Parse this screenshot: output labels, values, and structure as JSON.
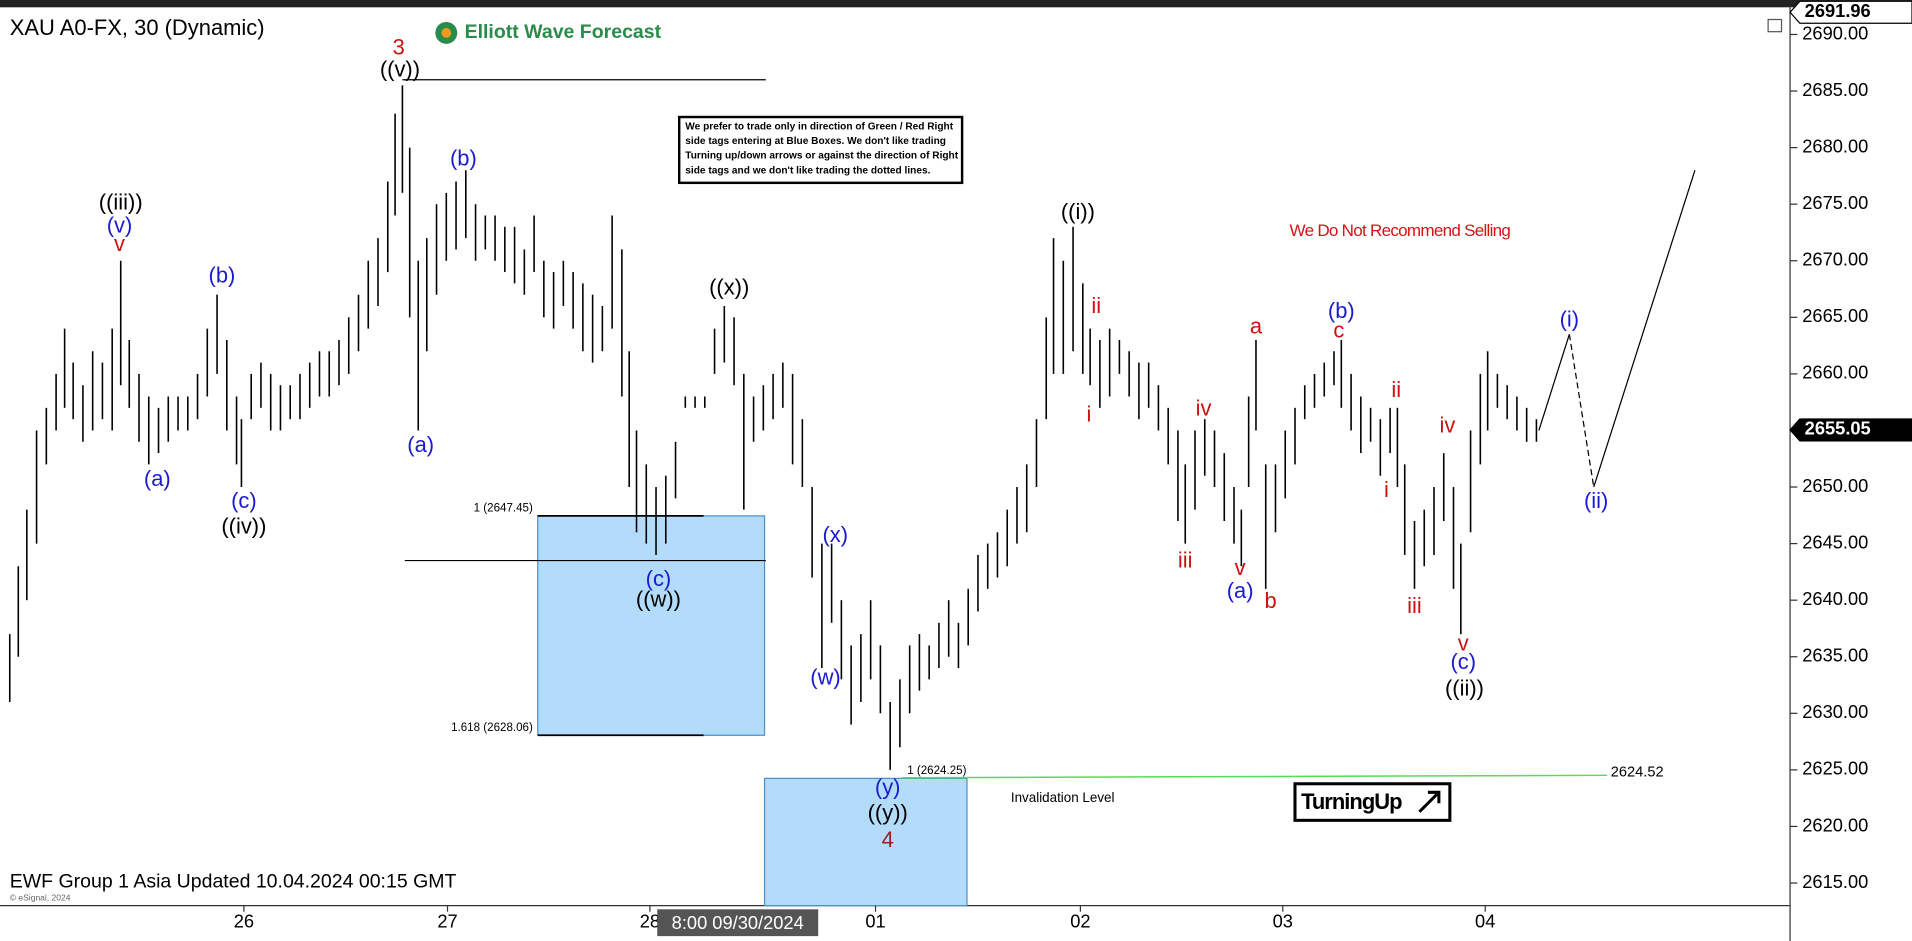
{
  "chart_data": {
    "type": "ohlc",
    "title": "XAU A0-FX, 30 (Dynamic)",
    "brand": "Elliott Wave Forecast",
    "note": [
      "We prefer to trade only in direction of Green / Red Right",
      "side tags entering at Blue Boxes. We don't like trading",
      "Turning up/down arrows or against the direction of Right",
      "side tags and we don't like trading the dotted lines."
    ],
    "recommendation": "We Do Not Recommend Selling",
    "badge": "TurningUp",
    "footer": "EWF Group 1 Asia Updated 10.04.2024 00:15 GMT",
    "copyright": "© eSignal, 2024",
    "cursor_label": "8:00 09/30/2024",
    "ylim": [
      2613,
      2692.4
    ],
    "yticks": [
      {
        "value": 2615,
        "label": "2615.00"
      },
      {
        "value": 2620,
        "label": "2620.00"
      },
      {
        "value": 2625,
        "label": "2625.00"
      },
      {
        "value": 2630,
        "label": "2630.00"
      },
      {
        "value": 2635,
        "label": "2635.00"
      },
      {
        "value": 2640,
        "label": "2640.00"
      },
      {
        "value": 2645,
        "label": "2645.00"
      },
      {
        "value": 2650,
        "label": "2650.00"
      },
      {
        "value": 2655,
        "label": "2655.00"
      },
      {
        "value": 2660,
        "label": "2660.00"
      },
      {
        "value": 2665,
        "label": "2665.00"
      },
      {
        "value": 2670,
        "label": "2670.00"
      },
      {
        "value": 2675,
        "label": "2675.00"
      },
      {
        "value": 2680,
        "label": "2680.00"
      },
      {
        "value": 2685,
        "label": "2685.00"
      },
      {
        "value": 2690,
        "label": "2690.00"
      }
    ],
    "xlim": [
      0,
      1468
    ],
    "xticks": [
      {
        "value": 200,
        "label": "26"
      },
      {
        "value": 367,
        "label": "27"
      },
      {
        "value": 533,
        "label": "28"
      },
      {
        "value": 718,
        "label": "01"
      },
      {
        "value": 886,
        "label": "02"
      },
      {
        "value": 1052,
        "label": "03"
      },
      {
        "value": 1218,
        "label": "04"
      }
    ],
    "price_tags": [
      2691.96,
      2655.05
    ],
    "bars": {
      "x": [
        8,
        15,
        22,
        30,
        38,
        46,
        53,
        60,
        68,
        76,
        84,
        92,
        99,
        106,
        114,
        122,
        130,
        138,
        146,
        154,
        162,
        170,
        178,
        186,
        194,
        198,
        206,
        214,
        222,
        230,
        238,
        246,
        254,
        262,
        270,
        278,
        286,
        294,
        302,
        310,
        318,
        324,
        330,
        336,
        343,
        350,
        358,
        366,
        374,
        382,
        390,
        398,
        406,
        414,
        422,
        430,
        438,
        446,
        454,
        462,
        470,
        478,
        486,
        494,
        502,
        510,
        516,
        522,
        530,
        538,
        546,
        554,
        562,
        570,
        578,
        586,
        594,
        602,
        610,
        618,
        626,
        634,
        642,
        650,
        658,
        666,
        674,
        682,
        690,
        698,
        706,
        714,
        722,
        730,
        738,
        746,
        754,
        762,
        770,
        778,
        786,
        794,
        802,
        810,
        818,
        826,
        834,
        842,
        850,
        858,
        864,
        872,
        880,
        888,
        894,
        902,
        910,
        918,
        926,
        934,
        942,
        950,
        958,
        966,
        972,
        980,
        988,
        996,
        1004,
        1012,
        1018,
        1024,
        1030,
        1038,
        1046,
        1054,
        1062,
        1070,
        1078,
        1086,
        1094,
        1100,
        1108,
        1116,
        1124,
        1132,
        1140,
        1146,
        1152,
        1160,
        1168,
        1176,
        1184,
        1192,
        1198,
        1206,
        1214,
        1220,
        1228,
        1236,
        1244,
        1252,
        1260
      ],
      "low": [
        2631,
        2635,
        2640,
        2645,
        2652,
        2655,
        2657,
        2656,
        2654,
        2655,
        2656,
        2655,
        2659,
        2657,
        2654,
        2652,
        2653,
        2654,
        2655,
        2655,
        2656,
        2658,
        2660,
        2655,
        2652,
        2650,
        2656,
        2657,
        2655,
        2655,
        2656,
        2656,
        2657,
        2658,
        2658,
        2659,
        2660,
        2662,
        2664,
        2666,
        2669,
        2674,
        2676,
        2665,
        2655,
        2662,
        2667,
        2670,
        2671,
        2672,
        2670,
        2671,
        2670,
        2669,
        2668,
        2667,
        2669,
        2665,
        2664,
        2666,
        2664,
        2662,
        2661,
        2662,
        2664,
        2658,
        2650,
        2646,
        2645,
        2644,
        2645,
        2649,
        2657,
        2657,
        2657,
        2660,
        2661,
        2659,
        2648,
        2654,
        2655,
        2656,
        2657,
        2652,
        2650,
        2642,
        2634,
        2638,
        2633,
        2629,
        2631,
        2633,
        2630,
        2625,
        2627,
        2630,
        2632,
        2633,
        2634,
        2635,
        2634,
        2636,
        2639,
        2641,
        2642,
        2643,
        2645,
        2646,
        2650,
        2656,
        2660,
        2660,
        2662,
        2660,
        2659,
        2657,
        2658,
        2660,
        2658,
        2656,
        2657,
        2655,
        2652,
        2647,
        2645,
        2648,
        2651,
        2650,
        2647,
        2645,
        2643,
        2650,
        2655,
        2641,
        2646,
        2649,
        2652,
        2656,
        2657,
        2658,
        2659,
        2657,
        2655,
        2653,
        2654,
        2651,
        2653,
        2650,
        2644,
        2641,
        2643,
        2644,
        2647,
        2641,
        2637,
        2646,
        2652,
        2655,
        2657,
        2656,
        2655,
        2654,
        2654
      ],
      "high": [
        2637,
        2643,
        2648,
        2655,
        2657,
        2660,
        2664,
        2661,
        2659,
        2662,
        2661,
        2664,
        2670,
        2663,
        2660,
        2658,
        2657,
        2658,
        2658,
        2658,
        2660,
        2664,
        2667,
        2663,
        2658,
        2656,
        2660,
        2661,
        2660,
        2659,
        2659,
        2660,
        2661,
        2662,
        2662,
        2663,
        2665,
        2667,
        2670,
        2672,
        2677,
        2683,
        2685.5,
        2680,
        2670,
        2672,
        2675,
        2676,
        2677,
        2678,
        2675,
        2674,
        2674,
        2673,
        2673,
        2671,
        2674,
        2670,
        2669,
        2670,
        2669,
        2668,
        2667,
        2666,
        2674,
        2671,
        2662,
        2655,
        2652,
        2650,
        2651,
        2654,
        2658,
        2658,
        2658,
        2664,
        2666,
        2665,
        2660,
        2658,
        2659,
        2660,
        2661,
        2660,
        2656,
        2650,
        2645,
        2645,
        2640,
        2636,
        2637,
        2640,
        2636,
        2631,
        2633,
        2636,
        2637,
        2636,
        2638,
        2640,
        2638,
        2641,
        2644,
        2645,
        2646,
        2648,
        2650,
        2652,
        2656,
        2665,
        2672,
        2670,
        2673,
        2668,
        2664,
        2663,
        2664,
        2663,
        2662,
        2661,
        2661,
        2659,
        2657,
        2655,
        2652,
        2655,
        2656,
        2655,
        2653,
        2650,
        2648,
        2658,
        2663,
        2652,
        2652,
        2655,
        2657,
        2659,
        2660,
        2661,
        2662,
        2663,
        2660,
        2658,
        2657,
        2656,
        2657,
        2657,
        2652,
        2647,
        2648,
        2650,
        2653,
        2650,
        2645,
        2655,
        2660,
        2662,
        2660,
        2659,
        2658,
        2657,
        2656
      ]
    },
    "zones": [
      {
        "x": [
          441,
          627
        ],
        "y": [
          2628.06,
          2647.45
        ]
      },
      {
        "x": [
          627,
          793
        ],
        "y": [
          2613,
          2624.25
        ]
      }
    ],
    "fib_labels": [
      {
        "value": 2647.45,
        "label": "1 (2647.45)"
      },
      {
        "value": 2628.06,
        "label": "1.618 (2628.06)"
      },
      {
        "value": 2624.25,
        "label": "1 (2624.25)"
      }
    ],
    "levels": [
      {
        "value": 2686,
        "x": [
          330,
          628
        ]
      },
      {
        "value": 2643.5,
        "x": [
          332,
          628
        ]
      }
    ],
    "invalidation": {
      "value": 2624.52,
      "label": "Invalidation Level",
      "color": "#55dd55"
    },
    "projection": {
      "x": [
        1262,
        1287,
        1307,
        1390
      ],
      "y": [
        2655,
        2663.5,
        2650,
        2678
      ]
    },
    "annotations": [
      {
        "text": "3",
        "color": "#cc1111"
      },
      {
        "text": "((v))",
        "color": "#000"
      },
      {
        "text": "((iii))",
        "color": "#000"
      },
      {
        "text": "(v)",
        "color": "#1a1ad0"
      },
      {
        "text": "v",
        "color": "#cc1111"
      },
      {
        "text": "(b)",
        "color": "#1a1ad0"
      },
      {
        "text": "(a)",
        "color": "#1a1ad0"
      },
      {
        "text": "(c)",
        "color": "#1a1ad0"
      },
      {
        "text": "((iv))",
        "color": "#000"
      },
      {
        "text": "(b)",
        "color": "#1a1ad0"
      },
      {
        "text": "(a)",
        "color": "#1a1ad0"
      },
      {
        "text": "((x))",
        "color": "#000"
      },
      {
        "text": "(c)",
        "color": "#1a1ad0"
      },
      {
        "text": "((w))",
        "color": "#000"
      },
      {
        "text": "(x)",
        "color": "#1a1ad0"
      },
      {
        "text": "(w)",
        "color": "#1a1ad0"
      },
      {
        "text": "(y)",
        "color": "#1a1ad0"
      },
      {
        "text": "((y))",
        "color": "#000"
      },
      {
        "text": "4",
        "color": "#9a2020"
      },
      {
        "text": "((i))",
        "color": "#000"
      },
      {
        "text": "ii",
        "color": "#cc1111"
      },
      {
        "text": "i",
        "color": "#cc1111"
      },
      {
        "text": "iii",
        "color": "#cc1111"
      },
      {
        "text": "iv",
        "color": "#cc1111"
      },
      {
        "text": "v",
        "color": "#cc1111"
      },
      {
        "text": "(a)",
        "color": "#1a1ad0"
      },
      {
        "text": "a",
        "color": "#cc1111"
      },
      {
        "text": "b",
        "color": "#cc1111"
      },
      {
        "text": "(b)",
        "color": "#1a1ad0"
      },
      {
        "text": "c",
        "color": "#cc1111"
      },
      {
        "text": "ii",
        "color": "#cc1111"
      },
      {
        "text": "i",
        "color": "#cc1111"
      },
      {
        "text": "iii",
        "color": "#cc1111"
      },
      {
        "text": "iv",
        "color": "#cc1111"
      },
      {
        "text": "v",
        "color": "#cc1111"
      },
      {
        "text": "(c)",
        "color": "#1a1ad0"
      },
      {
        "text": "((ii))",
        "color": "#000"
      },
      {
        "text": "(i)",
        "color": "#1a1ad0"
      },
      {
        "text": "(ii)",
        "color": "#1a1ad0"
      }
    ],
    "bar_color": "#000",
    "zone_color": "#b3dcfa"
  }
}
